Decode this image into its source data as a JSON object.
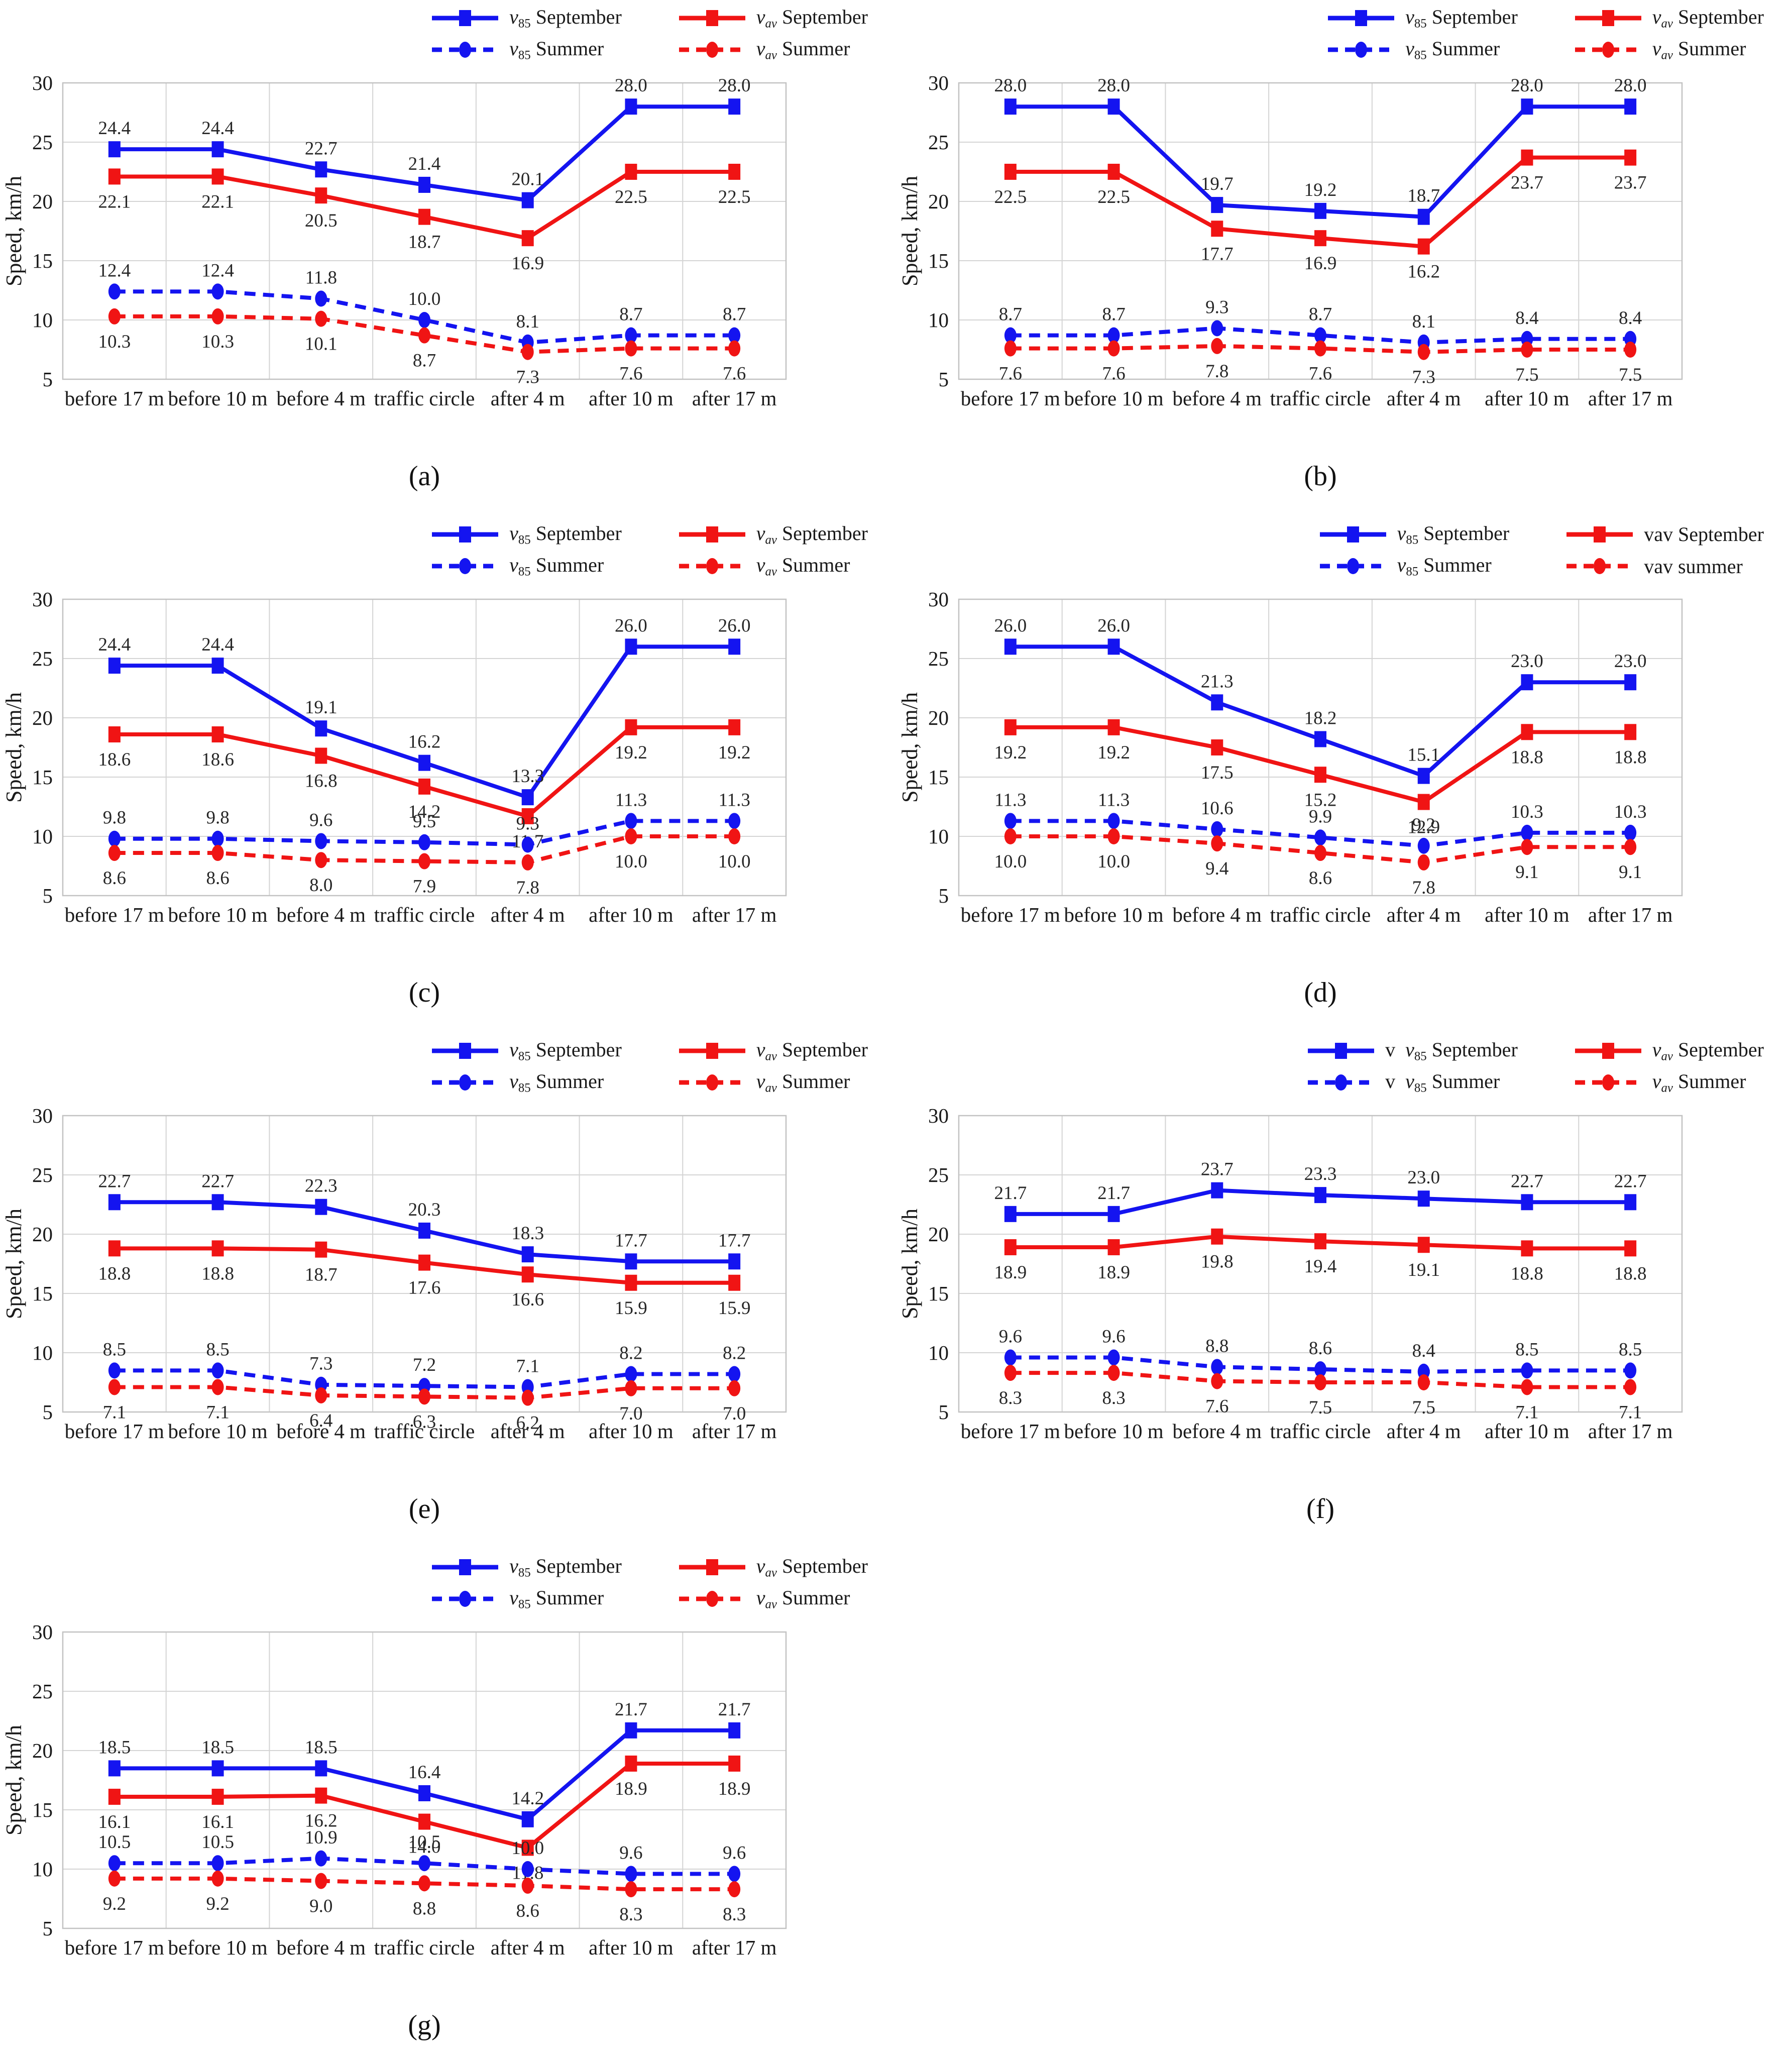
{
  "shared": {
    "ylabel": "Speed, km/h",
    "categories": [
      "before 17 m",
      "before 10 m",
      "before 4 m",
      "traffic circle",
      "after 4 m",
      "after 10 m",
      "after 17 m"
    ],
    "ylim": [
      5,
      30
    ],
    "yticks": [
      5,
      10,
      15,
      20,
      25,
      30
    ],
    "grid": "on",
    "legend_position": "top-right",
    "colors": {
      "september_blue": "#1414f0",
      "september_red": "#f01414",
      "gridline": "#d4d4d4",
      "plot_border": "#c2c2c2",
      "label_text": "#262626"
    },
    "series_defs": [
      {
        "key": "v85-september",
        "color": "blue",
        "line": "solid",
        "marker": "square",
        "label_pos": "above"
      },
      {
        "key": "vav-september",
        "color": "red",
        "line": "solid",
        "marker": "square",
        "label_pos": "below"
      },
      {
        "key": "v85-summer",
        "color": "blue",
        "line": "dashed",
        "marker": "circle",
        "label_pos": "above"
      },
      {
        "key": "vav-summer",
        "color": "red",
        "line": "dashed",
        "marker": "circle",
        "label_pos": "below"
      }
    ]
  },
  "chart_data": [
    {
      "type": "line",
      "caption": "(a)",
      "legend": [
        [
          {
            "t": "v",
            "i": true
          },
          {
            "t": "85",
            "sub": true
          },
          {
            "t": " September"
          }
        ],
        [
          {
            "t": "v",
            "i": true
          },
          {
            "t": "av",
            "sub": true,
            "i": true
          },
          {
            "t": " September"
          }
        ],
        [
          {
            "t": "v",
            "i": true
          },
          {
            "t": "85",
            "sub": true
          },
          {
            "t": " Summer"
          }
        ],
        [
          {
            "t": "v",
            "i": true
          },
          {
            "t": "av",
            "sub": true,
            "i": true
          },
          {
            "t": " Summer"
          }
        ]
      ],
      "series": [
        {
          "name": "v85 September",
          "values": [
            24.4,
            24.4,
            22.7,
            21.4,
            20.1,
            28.0,
            28.0
          ]
        },
        {
          "name": "vav September",
          "values": [
            22.1,
            22.1,
            20.5,
            18.7,
            16.9,
            22.5,
            22.5
          ]
        },
        {
          "name": "v85 Summer",
          "values": [
            12.4,
            12.4,
            11.8,
            10.0,
            8.1,
            8.7,
            8.7
          ]
        },
        {
          "name": "vav Summer",
          "values": [
            10.3,
            10.3,
            10.1,
            8.7,
            7.3,
            7.6,
            7.6
          ]
        }
      ]
    },
    {
      "type": "line",
      "caption": "(b)",
      "legend": [
        [
          {
            "t": "v",
            "i": true
          },
          {
            "t": "85",
            "sub": true
          },
          {
            "t": " September"
          }
        ],
        [
          {
            "t": "v",
            "i": true
          },
          {
            "t": "av",
            "sub": true,
            "i": true
          },
          {
            "t": " September"
          }
        ],
        [
          {
            "t": "v",
            "i": true
          },
          {
            "t": "85",
            "sub": true
          },
          {
            "t": " Summer"
          }
        ],
        [
          {
            "t": "v",
            "i": true
          },
          {
            "t": "av",
            "sub": true,
            "i": true
          },
          {
            "t": " Summer"
          }
        ]
      ],
      "series": [
        {
          "name": "v85 September",
          "values": [
            28.0,
            28.0,
            19.7,
            19.2,
            18.7,
            28.0,
            28.0
          ]
        },
        {
          "name": "vav September",
          "values": [
            22.5,
            22.5,
            17.7,
            16.9,
            16.2,
            23.7,
            23.7
          ]
        },
        {
          "name": "v85 Summer",
          "values": [
            8.7,
            8.7,
            9.3,
            8.7,
            8.1,
            8.4,
            8.4
          ]
        },
        {
          "name": "vav Summer",
          "values": [
            7.6,
            7.6,
            7.8,
            7.6,
            7.3,
            7.5,
            7.5
          ]
        }
      ]
    },
    {
      "type": "line",
      "caption": "(c)",
      "legend": [
        [
          {
            "t": "v",
            "i": true
          },
          {
            "t": "85",
            "sub": true
          },
          {
            "t": " September"
          }
        ],
        [
          {
            "t": "v",
            "i": true
          },
          {
            "t": "av",
            "sub": true,
            "i": true
          },
          {
            "t": " September"
          }
        ],
        [
          {
            "t": "v",
            "i": true
          },
          {
            "t": "85",
            "sub": true
          },
          {
            "t": " Summer"
          }
        ],
        [
          {
            "t": "v",
            "i": true
          },
          {
            "t": "av",
            "sub": true,
            "i": true
          },
          {
            "t": " Summer"
          }
        ]
      ],
      "series": [
        {
          "name": "v85 September",
          "values": [
            24.4,
            24.4,
            19.1,
            16.2,
            13.3,
            26.0,
            26.0
          ]
        },
        {
          "name": "vav September",
          "values": [
            18.6,
            18.6,
            16.8,
            14.2,
            11.7,
            19.2,
            19.2
          ]
        },
        {
          "name": "v85 Summer",
          "values": [
            9.8,
            9.8,
            9.6,
            9.5,
            9.3,
            11.3,
            11.3
          ]
        },
        {
          "name": "vav Summer",
          "values": [
            8.6,
            8.6,
            8.0,
            7.9,
            7.8,
            10.0,
            10.0
          ]
        }
      ]
    },
    {
      "type": "line",
      "caption": "(d)",
      "legend": [
        [
          {
            "t": "v",
            "i": true
          },
          {
            "t": "85",
            "sub": true
          },
          {
            "t": " September"
          }
        ],
        [
          {
            "t": "vav September"
          }
        ],
        [
          {
            "t": "v",
            "i": true
          },
          {
            "t": "85",
            "sub": true
          },
          {
            "t": " Summer"
          }
        ],
        [
          {
            "t": "vav summer"
          }
        ]
      ],
      "series": [
        {
          "name": "v85 September",
          "values": [
            26.0,
            26.0,
            21.3,
            18.2,
            15.1,
            23.0,
            23.0
          ]
        },
        {
          "name": "vav September",
          "values": [
            19.2,
            19.2,
            17.5,
            15.2,
            12.9,
            18.8,
            18.8
          ]
        },
        {
          "name": "v85 Summer",
          "values": [
            11.3,
            11.3,
            10.6,
            9.9,
            9.2,
            10.3,
            10.3
          ]
        },
        {
          "name": "vav Summer",
          "values": [
            10.0,
            10.0,
            9.4,
            8.6,
            7.8,
            9.1,
            9.1
          ]
        }
      ]
    },
    {
      "type": "line",
      "caption": "(e)",
      "legend": [
        [
          {
            "t": "v",
            "i": true
          },
          {
            "t": "85",
            "sub": true
          },
          {
            "t": " September"
          }
        ],
        [
          {
            "t": "v",
            "i": true
          },
          {
            "t": "av",
            "sub": true,
            "i": true
          },
          {
            "t": " September"
          }
        ],
        [
          {
            "t": "v",
            "i": true
          },
          {
            "t": "85",
            "sub": true
          },
          {
            "t": " Summer"
          }
        ],
        [
          {
            "t": "v",
            "i": true
          },
          {
            "t": "av",
            "sub": true,
            "i": true
          },
          {
            "t": " Summer"
          }
        ]
      ],
      "series": [
        {
          "name": "v85 September",
          "values": [
            22.7,
            22.7,
            22.3,
            20.3,
            18.3,
            17.7,
            17.7
          ]
        },
        {
          "name": "vav September",
          "values": [
            18.8,
            18.8,
            18.7,
            17.6,
            16.6,
            15.9,
            15.9
          ]
        },
        {
          "name": "v85 Summer",
          "values": [
            8.5,
            8.5,
            7.3,
            7.2,
            7.1,
            8.2,
            8.2
          ]
        },
        {
          "name": "vav Summer",
          "values": [
            7.1,
            7.1,
            6.4,
            6.3,
            6.2,
            7.0,
            7.0
          ]
        }
      ]
    },
    {
      "type": "line",
      "caption": "(f)",
      "legend": [
        [
          {
            "t": "v  "
          },
          {
            "t": "v",
            "i": true
          },
          {
            "t": "85",
            "sub": true
          },
          {
            "t": " September"
          }
        ],
        [
          {
            "t": "v",
            "i": true
          },
          {
            "t": "av",
            "sub": true,
            "i": true
          },
          {
            "t": " September"
          }
        ],
        [
          {
            "t": "v  "
          },
          {
            "t": "v",
            "i": true
          },
          {
            "t": "85",
            "sub": true
          },
          {
            "t": " Summer"
          }
        ],
        [
          {
            "t": "v",
            "i": true
          },
          {
            "t": "av",
            "sub": true,
            "i": true
          },
          {
            "t": " Summer"
          }
        ]
      ],
      "series": [
        {
          "name": "v85 September",
          "values": [
            21.7,
            21.7,
            23.7,
            23.3,
            23.0,
            22.7,
            22.7
          ]
        },
        {
          "name": "vav September",
          "values": [
            18.9,
            18.9,
            19.8,
            19.4,
            19.1,
            18.8,
            18.8
          ]
        },
        {
          "name": "v85 Summer",
          "values": [
            9.6,
            9.6,
            8.8,
            8.6,
            8.4,
            8.5,
            8.5
          ]
        },
        {
          "name": "vav Summer",
          "values": [
            8.3,
            8.3,
            7.6,
            7.5,
            7.5,
            7.1,
            7.1
          ]
        }
      ]
    },
    {
      "type": "line",
      "caption": "(g)",
      "legend": [
        [
          {
            "t": "v",
            "i": true
          },
          {
            "t": "85",
            "sub": true
          },
          {
            "t": " September"
          }
        ],
        [
          {
            "t": "v",
            "i": true
          },
          {
            "t": "av",
            "sub": true,
            "i": true
          },
          {
            "t": " September"
          }
        ],
        [
          {
            "t": "v",
            "i": true
          },
          {
            "t": "85",
            "sub": true
          },
          {
            "t": " Summer"
          }
        ],
        [
          {
            "t": "v",
            "i": true
          },
          {
            "t": "av",
            "sub": true,
            "i": true
          },
          {
            "t": " Summer"
          }
        ]
      ],
      "series": [
        {
          "name": "v85 September",
          "values": [
            18.5,
            18.5,
            18.5,
            16.4,
            14.2,
            21.7,
            21.7
          ]
        },
        {
          "name": "vav September",
          "values": [
            16.1,
            16.1,
            16.2,
            14.0,
            11.8,
            18.9,
            18.9
          ]
        },
        {
          "name": "v85 Summer",
          "values": [
            10.5,
            10.5,
            10.9,
            10.5,
            10.0,
            9.6,
            9.6
          ]
        },
        {
          "name": "vav Summer",
          "values": [
            9.2,
            9.2,
            9.0,
            8.8,
            8.6,
            8.3,
            8.3
          ]
        }
      ]
    }
  ]
}
